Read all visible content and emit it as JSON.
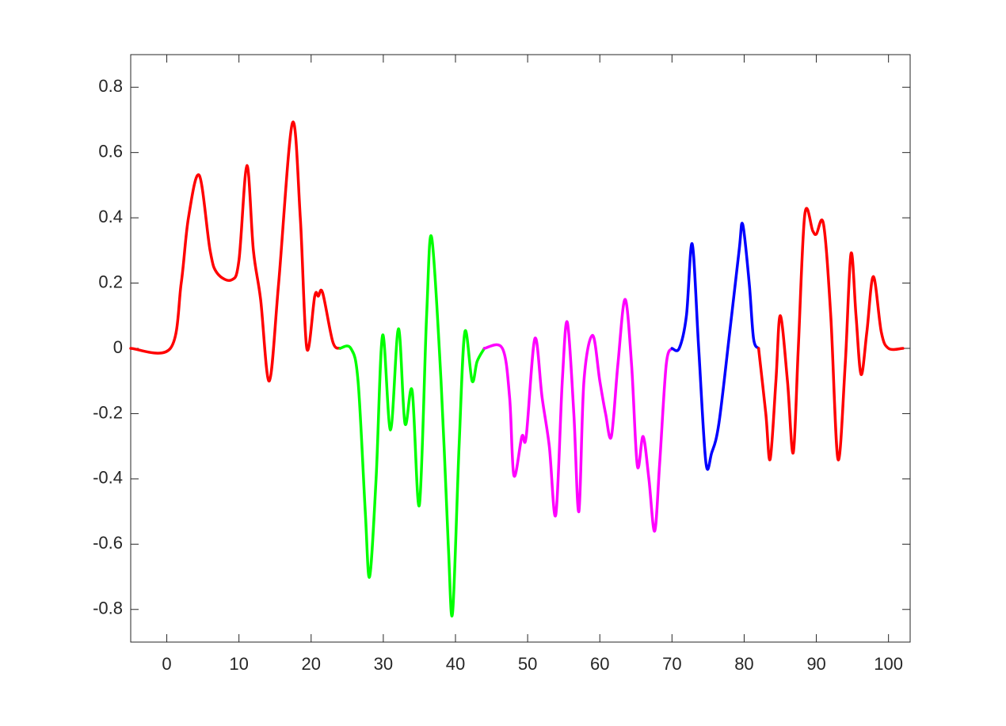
{
  "chart_data": {
    "type": "line",
    "xlim": [
      -5,
      103
    ],
    "ylim": [
      -0.9,
      0.9
    ],
    "xticks": [
      0,
      10,
      20,
      30,
      40,
      50,
      60,
      70,
      80,
      90,
      100
    ],
    "yticks": [
      -0.8,
      -0.6,
      -0.4,
      -0.2,
      0,
      0.2,
      0.4,
      0.6,
      0.8
    ],
    "box": true,
    "series": [
      {
        "color": "#ff0000",
        "x": [
          -5,
          0.5,
          2,
          3,
          4.5,
          6,
          7,
          9,
          10,
          11.1,
          12,
          13,
          14.2,
          15.5,
          17.4,
          18.5,
          19.4,
          20.5,
          21,
          21.6,
          23,
          24
        ],
        "values": [
          0,
          0,
          0.2,
          0.4,
          0.53,
          0.3,
          0.23,
          0.21,
          0.27,
          0.56,
          0.3,
          0.15,
          -0.1,
          0.2,
          0.69,
          0.4,
          0,
          0.16,
          0.16,
          0.17,
          0.02,
          0
        ]
      },
      {
        "color": "#00ff00",
        "x": [
          24,
          25.5,
          26.5,
          27.5,
          28.1,
          29,
          29.9,
          31,
          32.1,
          33,
          34,
          35,
          36,
          36.7,
          38,
          39,
          39.6,
          40.5,
          41.3,
          42.3,
          43,
          44
        ],
        "values": [
          0,
          0,
          -0.1,
          -0.5,
          -0.7,
          -0.4,
          0.04,
          -0.25,
          0.06,
          -0.23,
          -0.13,
          -0.48,
          0.1,
          0.34,
          -0.1,
          -0.6,
          -0.81,
          -0.3,
          0.05,
          -0.1,
          -0.04,
          0
        ]
      },
      {
        "color": "#ff00ff",
        "x": [
          44,
          46.5,
          47.5,
          48.1,
          49.2,
          49.8,
          51,
          52,
          53,
          53.9,
          54.8,
          55.5,
          56.4,
          57.1,
          57.8,
          59,
          60,
          60.8,
          61.6,
          62.5,
          63.5,
          64.4,
          65.2,
          66,
          66.8,
          67.6,
          68.3,
          69.2,
          70
        ],
        "values": [
          0,
          0,
          -0.15,
          -0.39,
          -0.27,
          -0.27,
          0.03,
          -0.15,
          -0.3,
          -0.51,
          -0.1,
          0.08,
          -0.2,
          -0.5,
          -0.1,
          0.04,
          -0.1,
          -0.2,
          -0.27,
          -0.05,
          0.15,
          -0.05,
          -0.36,
          -0.27,
          -0.4,
          -0.56,
          -0.35,
          -0.05,
          0
        ]
      },
      {
        "color": "#0000ff",
        "x": [
          70,
          71,
          72,
          72.8,
          73.7,
          74.7,
          75.5,
          76.5,
          78,
          79.3,
          79.8,
          80.7,
          81.3,
          82
        ],
        "values": [
          0,
          0,
          0.1,
          0.32,
          0,
          -0.35,
          -0.32,
          -0.23,
          0.05,
          0.3,
          0.38,
          0.2,
          0.03,
          0
        ]
      },
      {
        "color": "#ff0000",
        "x": [
          82,
          83,
          83.6,
          84.4,
          85,
          86,
          86.8,
          87.5,
          88.4,
          89.5,
          90,
          91,
          92,
          93,
          94,
          94.8,
          95.5,
          96.2,
          97,
          97.9,
          99,
          100,
          102
        ],
        "values": [
          0,
          -0.2,
          -0.34,
          -0.1,
          0.1,
          -0.1,
          -0.32,
          0,
          0.41,
          0.36,
          0.35,
          0.38,
          0.1,
          -0.34,
          -0.05,
          0.29,
          0.1,
          -0.08,
          0.05,
          0.22,
          0.05,
          0,
          0
        ]
      }
    ]
  }
}
